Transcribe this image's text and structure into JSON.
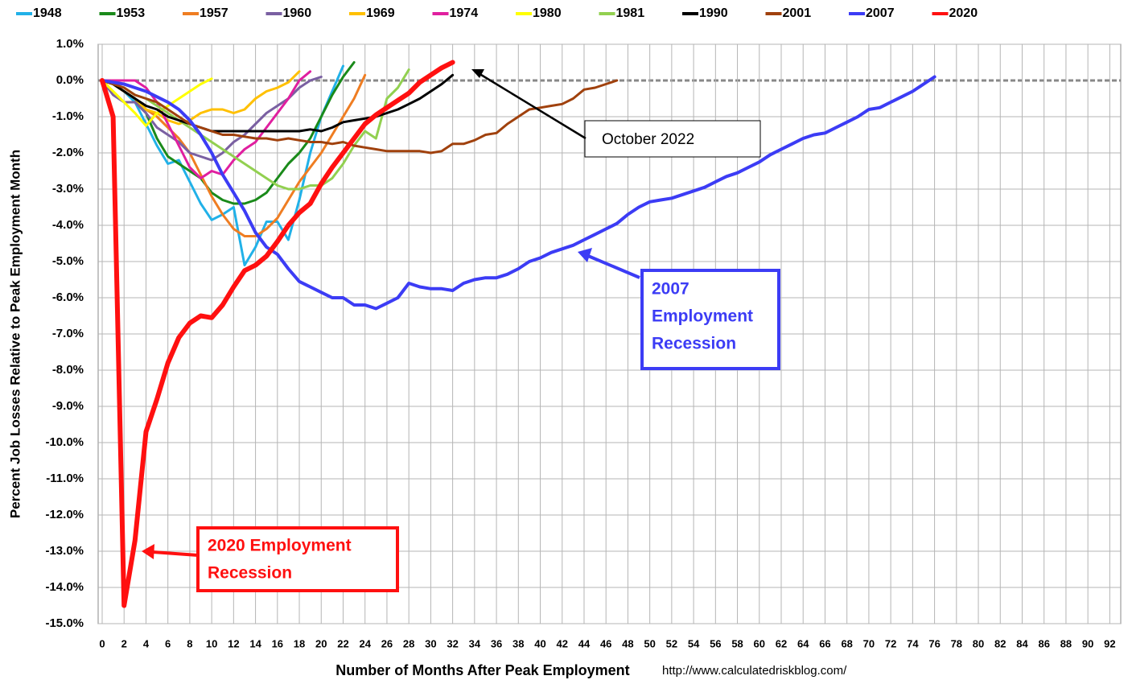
{
  "chart_data": {
    "type": "line",
    "y_label": "Percent Job Losses Relative to Peak Employment Month",
    "x_label": "Number of Months After Peak Employment",
    "source": "http://www.calculatedriskblog.com/",
    "annotations": {
      "latest": "October 2022",
      "recession_2007": [
        "2007",
        "Employment",
        "Recession"
      ],
      "recession_2020": [
        "2020 Employment",
        "Recession"
      ]
    },
    "grid": true,
    "legend": "top",
    "xlim": [
      0,
      93
    ],
    "ylim": [
      -15,
      1
    ],
    "xticks": [
      0,
      2,
      4,
      6,
      8,
      10,
      12,
      14,
      16,
      18,
      20,
      22,
      24,
      26,
      28,
      30,
      32,
      34,
      36,
      38,
      40,
      42,
      44,
      46,
      48,
      50,
      52,
      54,
      56,
      58,
      60,
      62,
      64,
      66,
      68,
      70,
      72,
      74,
      76,
      78,
      80,
      82,
      84,
      86,
      88,
      90,
      92
    ],
    "yticks": [
      {
        "value": 1,
        "label": "1.0%"
      },
      {
        "value": 0,
        "label": "0.0%"
      },
      {
        "value": -1,
        "label": "-1.0%"
      },
      {
        "value": -2,
        "label": "-2.0%"
      },
      {
        "value": -3,
        "label": "-3.0%"
      },
      {
        "value": -4,
        "label": "-4.0%"
      },
      {
        "value": -5,
        "label": "-5.0%"
      },
      {
        "value": -6,
        "label": "-6.0%"
      },
      {
        "value": -7,
        "label": "-7.0%"
      },
      {
        "value": -8,
        "label": "-8.0%"
      },
      {
        "value": -9,
        "label": "-9.0%"
      },
      {
        "value": -10,
        "label": "-10.0%"
      },
      {
        "value": -11,
        "label": "-11.0%"
      },
      {
        "value": -12,
        "label": "-12.0%"
      },
      {
        "value": -13,
        "label": "-13.0%"
      },
      {
        "value": -14,
        "label": "-14.0%"
      },
      {
        "value": -15,
        "label": "-15.0%"
      }
    ],
    "x": [
      0,
      1,
      2,
      3,
      4,
      5,
      6,
      7,
      8,
      9,
      10,
      11,
      12,
      13,
      14,
      15,
      16,
      17,
      18,
      19,
      20,
      21,
      22,
      23,
      24,
      25,
      26,
      27,
      28,
      29,
      30,
      31,
      32,
      33,
      34,
      35,
      36,
      37,
      38,
      39,
      40,
      41,
      42,
      43,
      44,
      45,
      46,
      47,
      48,
      49,
      50,
      51,
      52,
      53,
      54,
      55,
      56,
      57,
      58,
      59,
      60,
      61,
      62,
      63,
      64,
      65,
      66,
      67,
      68,
      69,
      70,
      71,
      72,
      73,
      74,
      75,
      76
    ],
    "series": [
      {
        "name": "1948",
        "color": "#21b1e8",
        "width": 3,
        "values": [
          0,
          -0.1,
          -0.3,
          -0.6,
          -1.2,
          -1.8,
          -2.3,
          -2.2,
          -2.8,
          -3.4,
          -3.85,
          -3.7,
          -3.5,
          -5.1,
          -4.6,
          -3.9,
          -3.9,
          -4.4,
          -3.3,
          -2.0,
          -1.0,
          -0.3,
          0.4,
          null,
          null,
          null,
          null,
          null,
          null,
          null,
          null,
          null,
          null,
          null,
          null,
          null,
          null,
          null,
          null,
          null,
          null,
          null,
          null,
          null,
          null,
          null,
          null,
          null,
          null,
          null,
          null,
          null,
          null,
          null,
          null,
          null,
          null,
          null,
          null,
          null,
          null,
          null,
          null,
          null,
          null,
          null,
          null,
          null,
          null,
          null,
          null,
          null,
          null,
          null,
          null,
          null,
          null
        ]
      },
      {
        "name": "1953",
        "color": "#1a8a1a",
        "width": 3,
        "values": [
          0,
          -0.1,
          -0.3,
          -0.5,
          -0.9,
          -1.6,
          -2.1,
          -2.3,
          -2.5,
          -2.7,
          -3.1,
          -3.3,
          -3.4,
          -3.4,
          -3.3,
          -3.1,
          -2.7,
          -2.3,
          -2.0,
          -1.6,
          -1.0,
          -0.4,
          0.1,
          0.5,
          null,
          null,
          null,
          null,
          null,
          null,
          null,
          null,
          null,
          null,
          null,
          null,
          null,
          null,
          null,
          null,
          null,
          null,
          null,
          null,
          null,
          null,
          null,
          null,
          null,
          null,
          null,
          null,
          null,
          null,
          null,
          null,
          null,
          null,
          null,
          null,
          null,
          null,
          null,
          null,
          null,
          null,
          null,
          null,
          null,
          null,
          null,
          null,
          null,
          null,
          null,
          null,
          null
        ]
      },
      {
        "name": "1957",
        "color": "#ef7d22",
        "width": 3,
        "values": [
          0,
          -0.1,
          -0.3,
          -0.5,
          -0.8,
          -1.0,
          -1.3,
          -1.6,
          -2.0,
          -2.6,
          -3.2,
          -3.7,
          -4.1,
          -4.3,
          -4.3,
          -4.1,
          -3.8,
          -3.3,
          -2.8,
          -2.4,
          -2.0,
          -1.5,
          -1.0,
          -0.5,
          0.15,
          null,
          null,
          null,
          null,
          null,
          null,
          null,
          null,
          null,
          null,
          null,
          null,
          null,
          null,
          null,
          null,
          null,
          null,
          null,
          null,
          null,
          null,
          null,
          null,
          null,
          null,
          null,
          null,
          null,
          null,
          null,
          null,
          null,
          null,
          null,
          null,
          null,
          null,
          null,
          null,
          null,
          null,
          null,
          null,
          null,
          null,
          null,
          null,
          null,
          null,
          null,
          null
        ]
      },
      {
        "name": "1960",
        "color": "#7a60a2",
        "width": 3,
        "values": [
          0,
          -0.4,
          -0.6,
          -0.6,
          -0.9,
          -1.3,
          -1.5,
          -1.7,
          -2.0,
          -2.1,
          -2.2,
          -2.0,
          -1.7,
          -1.5,
          -1.2,
          -0.9,
          -0.7,
          -0.5,
          -0.2,
          0,
          0.1,
          null,
          null,
          null,
          null,
          null,
          null,
          null,
          null,
          null,
          null,
          null,
          null,
          null,
          null,
          null,
          null,
          null,
          null,
          null,
          null,
          null,
          null,
          null,
          null,
          null,
          null,
          null,
          null,
          null,
          null,
          null,
          null,
          null,
          null,
          null,
          null,
          null,
          null,
          null,
          null,
          null,
          null,
          null,
          null,
          null,
          null,
          null,
          null,
          null,
          null,
          null,
          null,
          null,
          null,
          null,
          null
        ]
      },
      {
        "name": "1969",
        "color": "#ffc000",
        "width": 3,
        "values": [
          0,
          -0.1,
          -0.3,
          -0.5,
          -0.8,
          -0.9,
          -1.1,
          -1.2,
          -1.1,
          -0.9,
          -0.8,
          -0.8,
          -0.9,
          -0.8,
          -0.5,
          -0.3,
          -0.2,
          -0.05,
          0.25,
          null,
          null,
          null,
          null,
          null,
          null,
          null,
          null,
          null,
          null,
          null,
          null,
          null,
          null,
          null,
          null,
          null,
          null,
          null,
          null,
          null,
          null,
          null,
          null,
          null,
          null,
          null,
          null,
          null,
          null,
          null,
          null,
          null,
          null,
          null,
          null,
          null,
          null,
          null,
          null,
          null,
          null,
          null,
          null,
          null,
          null,
          null,
          null,
          null,
          null,
          null,
          null,
          null,
          null,
          null,
          null,
          null,
          null
        ]
      },
      {
        "name": "1974",
        "color": "#e01f9f",
        "width": 3,
        "values": [
          0,
          0,
          0,
          0,
          -0.2,
          -0.6,
          -1.2,
          -1.8,
          -2.4,
          -2.7,
          -2.5,
          -2.6,
          -2.2,
          -1.9,
          -1.7,
          -1.3,
          -0.9,
          -0.5,
          0,
          0.25,
          null,
          null,
          null,
          null,
          null,
          null,
          null,
          null,
          null,
          null,
          null,
          null,
          null,
          null,
          null,
          null,
          null,
          null,
          null,
          null,
          null,
          null,
          null,
          null,
          null,
          null,
          null,
          null,
          null,
          null,
          null,
          null,
          null,
          null,
          null,
          null,
          null,
          null,
          null,
          null,
          null,
          null,
          null,
          null,
          null,
          null,
          null,
          null,
          null,
          null,
          null,
          null,
          null,
          null,
          null,
          null,
          null
        ]
      },
      {
        "name": "1980",
        "color": "#ffff00",
        "width": 3,
        "values": [
          0,
          -0.3,
          -0.6,
          -0.9,
          -1.25,
          -0.9,
          -0.7,
          -0.5,
          -0.3,
          -0.1,
          0.05,
          null,
          null,
          null,
          null,
          null,
          null,
          null,
          null,
          null,
          null,
          null,
          null,
          null,
          null,
          null,
          null,
          null,
          null,
          null,
          null,
          null,
          null,
          null,
          null,
          null,
          null,
          null,
          null,
          null,
          null,
          null,
          null,
          null,
          null,
          null,
          null,
          null,
          null,
          null,
          null,
          null,
          null,
          null,
          null,
          null,
          null,
          null,
          null,
          null,
          null,
          null,
          null,
          null,
          null,
          null,
          null,
          null,
          null,
          null,
          null,
          null,
          null,
          null,
          null,
          null,
          null
        ]
      },
      {
        "name": "1981",
        "color": "#92d050",
        "width": 3,
        "values": [
          0,
          -0.1,
          -0.2,
          -0.4,
          -0.5,
          -0.7,
          -0.9,
          -1.1,
          -1.3,
          -1.5,
          -1.7,
          -1.9,
          -2.1,
          -2.3,
          -2.5,
          -2.7,
          -2.9,
          -3.0,
          -3.0,
          -2.9,
          -2.9,
          -2.7,
          -2.3,
          -1.8,
          -1.4,
          -1.6,
          -0.5,
          -0.2,
          0.3,
          null,
          null,
          null,
          null,
          null,
          null,
          null,
          null,
          null,
          null,
          null,
          null,
          null,
          null,
          null,
          null,
          null,
          null,
          null,
          null,
          null,
          null,
          null,
          null,
          null,
          null,
          null,
          null,
          null,
          null,
          null,
          null,
          null,
          null,
          null,
          null,
          null,
          null,
          null,
          null,
          null,
          null,
          null,
          null,
          null,
          null,
          null,
          null
        ]
      },
      {
        "name": "1990",
        "color": "#000000",
        "width": 3,
        "values": [
          0,
          -0.1,
          -0.3,
          -0.5,
          -0.7,
          -0.8,
          -1.0,
          -1.1,
          -1.2,
          -1.3,
          -1.4,
          -1.4,
          -1.4,
          -1.4,
          -1.4,
          -1.4,
          -1.4,
          -1.4,
          -1.4,
          -1.35,
          -1.4,
          -1.3,
          -1.15,
          -1.1,
          -1.05,
          -1.0,
          -0.9,
          -0.8,
          -0.65,
          -0.5,
          -0.3,
          -0.1,
          0.15,
          null,
          null,
          null,
          null,
          null,
          null,
          null,
          null,
          null,
          null,
          null,
          null,
          null,
          null,
          null,
          null,
          null,
          null,
          null,
          null,
          null,
          null,
          null,
          null,
          null,
          null,
          null,
          null,
          null,
          null,
          null,
          null,
          null,
          null,
          null,
          null,
          null,
          null,
          null,
          null,
          null,
          null,
          null,
          null
        ]
      },
      {
        "name": "2001",
        "color": "#a0410d",
        "width": 3,
        "values": [
          0,
          -0.1,
          -0.2,
          -0.4,
          -0.5,
          -0.6,
          -0.8,
          -1.0,
          -1.2,
          -1.3,
          -1.4,
          -1.5,
          -1.5,
          -1.55,
          -1.6,
          -1.6,
          -1.65,
          -1.6,
          -1.65,
          -1.7,
          -1.7,
          -1.75,
          -1.7,
          -1.8,
          -1.85,
          -1.9,
          -1.95,
          -1.95,
          -1.95,
          -1.95,
          -2.0,
          -1.95,
          -1.75,
          -1.75,
          -1.65,
          -1.5,
          -1.45,
          -1.2,
          -1.0,
          -0.8,
          -0.75,
          -0.7,
          -0.65,
          -0.5,
          -0.25,
          -0.2,
          -0.1,
          0,
          null,
          null,
          null,
          null,
          null,
          null,
          null,
          null,
          null,
          null,
          null,
          null,
          null,
          null,
          null,
          null,
          null,
          null,
          null,
          null,
          null,
          null,
          null,
          null,
          null,
          null,
          null,
          null,
          null
        ]
      },
      {
        "name": "2007",
        "color": "#3c3cf5",
        "width": 4,
        "values": [
          0,
          -0.05,
          -0.1,
          -0.2,
          -0.3,
          -0.45,
          -0.6,
          -0.8,
          -1.1,
          -1.5,
          -2.0,
          -2.6,
          -3.1,
          -3.6,
          -4.2,
          -4.6,
          -4.8,
          -5.2,
          -5.55,
          -5.7,
          -5.85,
          -6.0,
          -6.0,
          -6.2,
          -6.2,
          -6.3,
          -6.15,
          -6.0,
          -5.6,
          -5.7,
          -5.75,
          -5.75,
          -5.8,
          -5.6,
          -5.5,
          -5.45,
          -5.45,
          -5.35,
          -5.2,
          -5.0,
          -4.9,
          -4.75,
          -4.65,
          -4.55,
          -4.4,
          -4.25,
          -4.1,
          -3.95,
          -3.7,
          -3.5,
          -3.35,
          -3.3,
          -3.25,
          -3.15,
          -3.05,
          -2.95,
          -2.8,
          -2.65,
          -2.55,
          -2.4,
          -2.25,
          -2.05,
          -1.9,
          -1.75,
          -1.6,
          -1.5,
          -1.45,
          -1.3,
          -1.15,
          -1.0,
          -0.8,
          -0.75,
          -0.6,
          -0.45,
          -0.3,
          -0.1,
          0.1
        ]
      },
      {
        "name": "2020",
        "color": "#ff1010",
        "width": 6,
        "values": [
          0,
          -1.0,
          -14.5,
          -12.7,
          -9.7,
          -8.8,
          -7.8,
          -7.1,
          -6.7,
          -6.5,
          -6.55,
          -6.2,
          -5.7,
          -5.25,
          -5.1,
          -4.85,
          -4.45,
          -4.0,
          -3.65,
          -3.4,
          -2.85,
          -2.4,
          -2.0,
          -1.6,
          -1.2,
          -0.95,
          -0.75,
          -0.55,
          -0.35,
          -0.05,
          0.15,
          0.35,
          0.5,
          null,
          null,
          null,
          null,
          null,
          null,
          null,
          null,
          null,
          null,
          null,
          null,
          null,
          null,
          null,
          null,
          null,
          null,
          null,
          null,
          null,
          null,
          null,
          null,
          null,
          null,
          null,
          null,
          null,
          null,
          null,
          null,
          null,
          null,
          null,
          null,
          null,
          null,
          null,
          null,
          null,
          null,
          null,
          null
        ]
      }
    ]
  }
}
